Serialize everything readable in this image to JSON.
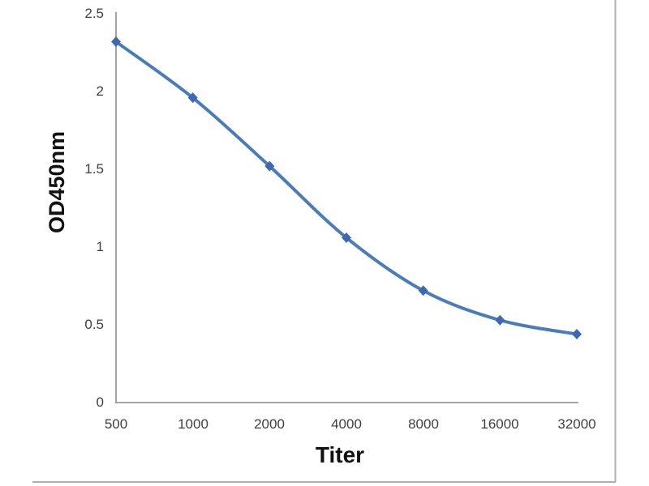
{
  "figure": {
    "xlabel": "Titer",
    "ylabel": "OD450nm"
  },
  "chart_data": {
    "type": "line",
    "smooth": true,
    "title": "",
    "xlabel": "Titer",
    "ylabel": "OD450nm",
    "categories": [
      "500",
      "1000",
      "2000",
      "4000",
      "8000",
      "16000",
      "32000"
    ],
    "series": [
      {
        "name": "OD450nm",
        "values": [
          2.32,
          1.96,
          1.52,
          1.06,
          0.72,
          0.53,
          0.44
        ]
      }
    ],
    "ylim": [
      0,
      2.5
    ],
    "ytick_labels": [
      "2.5",
      "2",
      "1.5",
      "1",
      "0.5",
      "0"
    ],
    "xtick_labels": [
      "500",
      "1000",
      "2000",
      "4000",
      "8000",
      "16000",
      "32000"
    ],
    "grid": false,
    "legend": false,
    "marker": "diamond",
    "colors": {
      "line": "#4b7cba",
      "marker": "#3e68b2",
      "axis": "#a3a3a3",
      "tick_text": "#3f3f3f",
      "title_text": "#111111",
      "frame": "#aeaeae"
    }
  }
}
